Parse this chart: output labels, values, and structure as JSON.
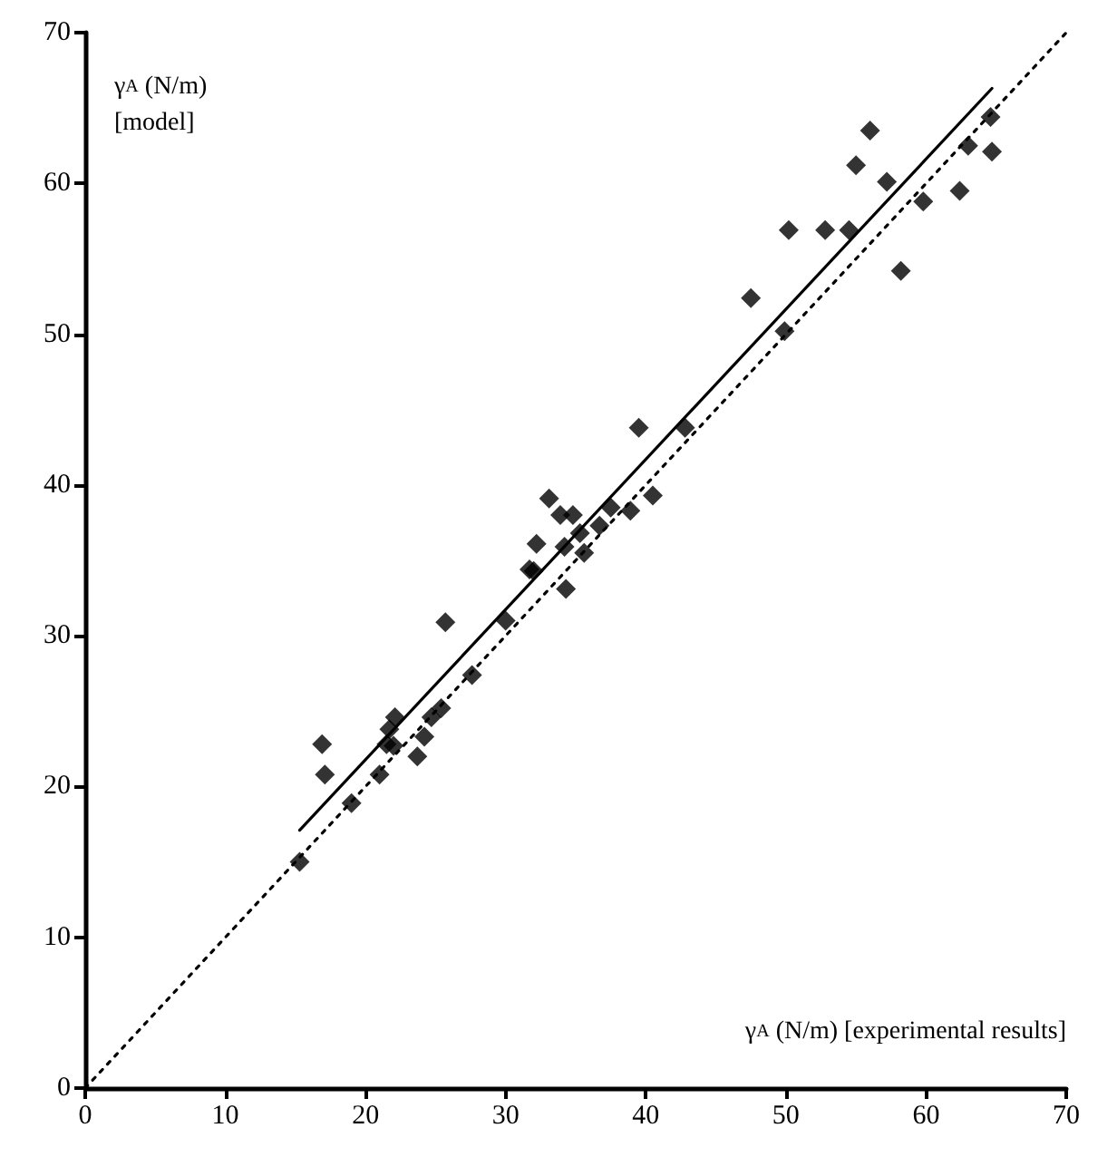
{
  "chart_data": {
    "type": "scatter",
    "xlabel": "γ$_{A}$ (N/m) [experimental results]",
    "ylabel": "γ$_{A}$ (N/m)\n[model]",
    "xlim": [
      0,
      70
    ],
    "ylim": [
      0,
      70
    ],
    "xticks": [
      0,
      10,
      20,
      30,
      40,
      50,
      60,
      70
    ],
    "yticks": [
      0,
      10,
      20,
      30,
      40,
      50,
      60,
      70
    ],
    "grid": false,
    "marker": "diamond",
    "series": [
      {
        "color": "#000000",
        "x": [
          15.3,
          16.9,
          17.1,
          19.0,
          21.0,
          21.5,
          21.7,
          22.0,
          22.1,
          23.7,
          24.2,
          24.7,
          25.4,
          25.7,
          27.6,
          30.0,
          31.7,
          32.0,
          32.2,
          33.1,
          33.9,
          34.2,
          34.3,
          34.8,
          35.3,
          35.6,
          36.7,
          37.5,
          38.9,
          39.5,
          40.5,
          42.8,
          47.5,
          49.9,
          50.2,
          52.8,
          54.5,
          55.0,
          56.0,
          57.2,
          58.2,
          59.8,
          62.4,
          63.0,
          64.6,
          64.7
        ],
        "values": [
          15.0,
          22.8,
          20.8,
          18.9,
          20.8,
          22.8,
          23.8,
          22.7,
          24.6,
          22.0,
          23.3,
          24.6,
          25.2,
          30.9,
          27.4,
          31.0,
          34.4,
          34.3,
          36.1,
          39.1,
          38.0,
          35.9,
          33.1,
          38.0,
          36.8,
          35.5,
          37.3,
          38.5,
          38.3,
          43.8,
          39.3,
          43.8,
          52.4,
          50.2,
          56.9,
          56.9,
          56.9,
          61.2,
          63.5,
          60.1,
          54.2,
          58.8,
          59.5,
          62.5,
          64.4,
          62.1
        ]
      },
      {
        "type": "line",
        "color": "#000000",
        "line_style": "solid",
        "marker": "none",
        "x": [
          15.3,
          64.7
        ],
        "values": [
          17.1,
          66.3
        ]
      },
      {
        "type": "line",
        "color": "#000000",
        "line_style": "dotted",
        "marker": "none",
        "x": [
          0,
          70
        ],
        "values": [
          0,
          70
        ]
      }
    ]
  }
}
